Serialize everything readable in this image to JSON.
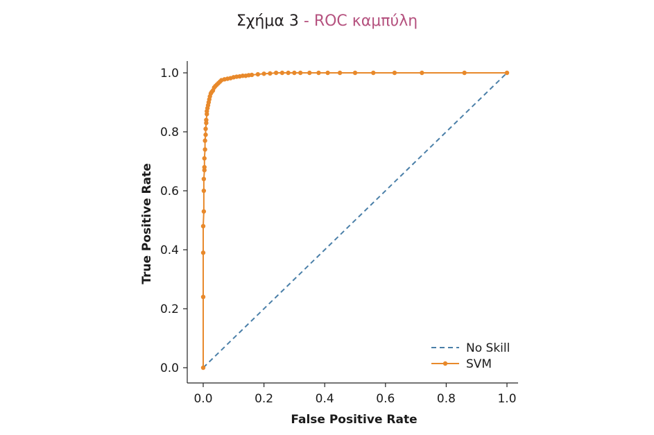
{
  "figure": {
    "caption_prefix": "Σχήμα 3",
    "caption_separator": " - ",
    "caption_name": "ROC καμπύλη"
  },
  "chart_data": {
    "type": "line",
    "title": "",
    "xlabel": "False Positive Rate",
    "ylabel": "True Positive Rate",
    "xlim": [
      0.0,
      1.0
    ],
    "ylim": [
      0.0,
      1.0
    ],
    "xticks": [
      "0.0",
      "0.2",
      "0.4",
      "0.6",
      "0.8",
      "1.0"
    ],
    "yticks": [
      "0.0",
      "0.2",
      "0.4",
      "0.6",
      "0.8",
      "1.0"
    ],
    "grid": false,
    "legend_position": "bottom-right",
    "series": [
      {
        "name": "No Skill",
        "style": "dashed",
        "marker": "none",
        "color": "#4a7fa8",
        "x": [
          0.0,
          1.0
        ],
        "y": [
          0.0,
          1.0
        ]
      },
      {
        "name": "SVM",
        "style": "solid",
        "marker": "dot",
        "color": "#e8892b",
        "x": [
          0.0,
          0.0,
          0.0,
          0.0,
          0.002,
          0.002,
          0.002,
          0.004,
          0.004,
          0.004,
          0.006,
          0.006,
          0.008,
          0.008,
          0.01,
          0.01,
          0.012,
          0.012,
          0.014,
          0.016,
          0.018,
          0.02,
          0.022,
          0.025,
          0.028,
          0.032,
          0.036,
          0.04,
          0.045,
          0.05,
          0.055,
          0.06,
          0.07,
          0.08,
          0.09,
          0.1,
          0.11,
          0.12,
          0.13,
          0.14,
          0.15,
          0.16,
          0.18,
          0.2,
          0.22,
          0.24,
          0.26,
          0.28,
          0.3,
          0.32,
          0.35,
          0.38,
          0.41,
          0.45,
          0.5,
          0.56,
          0.63,
          0.72,
          0.86,
          1.0
        ],
        "y": [
          0.0,
          0.24,
          0.39,
          0.48,
          0.53,
          0.6,
          0.64,
          0.67,
          0.68,
          0.71,
          0.74,
          0.77,
          0.79,
          0.81,
          0.83,
          0.84,
          0.86,
          0.87,
          0.88,
          0.89,
          0.9,
          0.91,
          0.92,
          0.93,
          0.935,
          0.94,
          0.95,
          0.955,
          0.96,
          0.965,
          0.97,
          0.975,
          0.978,
          0.98,
          0.982,
          0.985,
          0.987,
          0.988,
          0.99,
          0.99,
          0.992,
          0.993,
          0.995,
          0.997,
          0.998,
          1.0,
          1.0,
          1.0,
          1.0,
          1.0,
          1.0,
          1.0,
          1.0,
          1.0,
          1.0,
          1.0,
          1.0,
          1.0,
          1.0,
          1.0
        ]
      }
    ]
  }
}
